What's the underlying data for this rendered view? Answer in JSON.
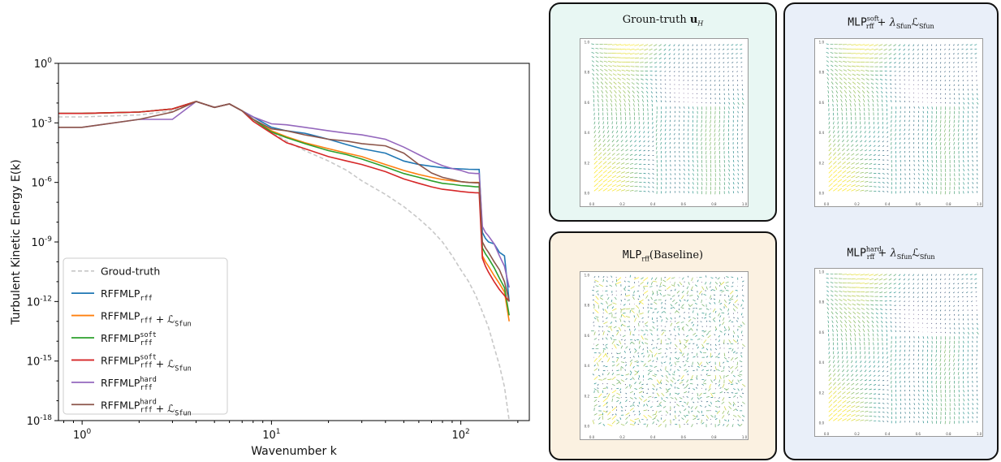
{
  "chart_data": {
    "type": "line",
    "xscale": "log",
    "yscale": "log",
    "xlabel": "Wavenumber k",
    "ylabel": "Turbulent Kinetic Energy E(k)",
    "xlim": [
      0.75,
      230
    ],
    "ylim": [
      1e-18,
      1
    ],
    "x_ticks": [
      "10^0",
      "10^1",
      "10^2"
    ],
    "y_ticks": [
      "10^0",
      "10^-3",
      "10^-6",
      "10^-9",
      "10^-12",
      "10^-15",
      "10^-18"
    ],
    "legend_location": "lower-left",
    "series": [
      {
        "name": "Groud-truth",
        "color": "#c8c8c8",
        "style": "dashed",
        "x": [
          0.75,
          1,
          2,
          3,
          4,
          5,
          6,
          7,
          8,
          10,
          12,
          15,
          20,
          25,
          30,
          40,
          50,
          60,
          70,
          80,
          90,
          100,
          110,
          120,
          130,
          140,
          150,
          160,
          170,
          180
        ],
        "y": [
          0.002,
          0.002,
          0.0025,
          0.004,
          0.012,
          0.006,
          0.009,
          0.004,
          0.0015,
          0.00035,
          0.00012,
          4e-05,
          1.2e-05,
          4e-06,
          1.2e-06,
          2.5e-07,
          6e-08,
          1.5e-08,
          4e-09,
          1e-09,
          2e-10,
          4e-11,
          1e-11,
          2e-12,
          3e-13,
          5e-14,
          5e-15,
          6e-16,
          5e-17,
          1e-18
        ]
      },
      {
        "name": "RFFMLP_rff",
        "color": "#1f77b4",
        "style": "solid",
        "x": [
          0.75,
          1,
          2,
          3,
          4,
          5,
          6,
          7,
          8,
          10,
          12,
          15,
          20,
          25,
          30,
          40,
          50,
          60,
          70,
          80,
          90,
          100,
          110,
          120,
          125,
          130,
          135,
          140,
          150,
          160,
          170,
          180
        ],
        "y": [
          0.003,
          0.003,
          0.0035,
          0.005,
          0.012,
          0.006,
          0.009,
          0.004,
          0.002,
          0.0006,
          0.0004,
          0.0003,
          0.00015,
          8e-05,
          5e-05,
          3e-05,
          1.2e-05,
          8e-06,
          6.5e-06,
          5.5e-06,
          5e-06,
          4.8e-06,
          4.6e-06,
          4.5e-06,
          4.5e-06,
          3e-09,
          1.5e-09,
          1e-09,
          8e-10,
          3e-10,
          2e-10,
          1e-12
        ]
      },
      {
        "name": "RFFMLP_rff + L_Sfun",
        "color": "#ff7f0e",
        "style": "solid",
        "x": [
          0.75,
          1,
          2,
          3,
          4,
          5,
          6,
          7,
          8,
          10,
          12,
          15,
          20,
          25,
          30,
          40,
          50,
          60,
          70,
          80,
          90,
          100,
          110,
          120,
          125,
          130,
          135,
          140,
          150,
          160,
          170,
          180
        ],
        "y": [
          0.003,
          0.003,
          0.0035,
          0.005,
          0.012,
          0.006,
          0.009,
          0.004,
          0.0015,
          0.0004,
          0.0002,
          0.0001,
          5e-05,
          3e-05,
          2e-05,
          8e-06,
          4e-06,
          2.5e-06,
          1.8e-06,
          1.4e-06,
          1.2e-06,
          1.1e-06,
          1e-06,
          1e-06,
          1e-06,
          2e-10,
          1e-10,
          6e-11,
          2e-11,
          8e-12,
          3e-12,
          1e-13
        ]
      },
      {
        "name": "RFFMLP_rff^soft",
        "color": "#2ca02c",
        "style": "solid",
        "x": [
          0.75,
          1,
          2,
          3,
          4,
          5,
          6,
          7,
          8,
          10,
          12,
          15,
          20,
          25,
          30,
          40,
          50,
          60,
          70,
          80,
          90,
          100,
          110,
          120,
          125,
          130,
          135,
          140,
          150,
          160,
          170,
          180
        ],
        "y": [
          0.003,
          0.003,
          0.0035,
          0.005,
          0.012,
          0.006,
          0.009,
          0.004,
          0.0015,
          0.00035,
          0.00018,
          9e-05,
          4e-05,
          2.5e-05,
          1.5e-05,
          6e-06,
          2.8e-06,
          1.8e-06,
          1.2e-06,
          9e-07,
          8e-07,
          7e-07,
          6.5e-07,
          6e-07,
          6e-07,
          5e-10,
          2.5e-10,
          1.5e-10,
          5e-11,
          1.5e-11,
          5e-12,
          2e-13
        ]
      },
      {
        "name": "RFFMLP_rff^soft + L_Sfun",
        "color": "#d62728",
        "style": "solid",
        "x": [
          0.75,
          1,
          2,
          3,
          4,
          5,
          6,
          7,
          8,
          10,
          12,
          15,
          20,
          25,
          30,
          40,
          50,
          60,
          70,
          80,
          90,
          100,
          110,
          120,
          125,
          130,
          135,
          140,
          150,
          160,
          170,
          180
        ],
        "y": [
          0.003,
          0.003,
          0.0035,
          0.005,
          0.012,
          0.006,
          0.009,
          0.004,
          0.0012,
          0.0003,
          0.0001,
          5e-05,
          2e-05,
          1.2e-05,
          8e-06,
          3.5e-06,
          1.5e-06,
          9e-07,
          6e-07,
          4.5e-07,
          4e-07,
          3.5e-07,
          3.2e-07,
          3e-07,
          3e-07,
          1.5e-10,
          6e-11,
          3e-11,
          1e-11,
          4e-12,
          2e-12,
          1e-12
        ]
      },
      {
        "name": "RFFMLP_rff^hard",
        "color": "#9467bd",
        "style": "solid",
        "x": [
          0.75,
          1,
          2,
          3,
          4,
          5,
          6,
          7,
          8,
          10,
          12,
          15,
          20,
          25,
          30,
          40,
          50,
          60,
          70,
          80,
          90,
          100,
          110,
          120,
          125,
          130,
          135,
          140,
          150,
          160,
          170,
          180
        ],
        "y": [
          0.0006,
          0.0006,
          0.0015,
          0.0015,
          0.012,
          0.006,
          0.009,
          0.004,
          0.002,
          0.0009,
          0.0008,
          0.0006,
          0.0004,
          0.0003,
          0.00025,
          0.00015,
          6e-05,
          2.5e-05,
          1.2e-05,
          7e-06,
          5e-06,
          4e-06,
          3e-06,
          2.8e-06,
          2.8e-06,
          6e-09,
          3e-09,
          2e-09,
          8e-10,
          2e-10,
          6e-11,
          5e-12
        ]
      },
      {
        "name": "RFFMLP_rff^hard + L_Sfun",
        "color": "#8c564b",
        "style": "solid",
        "x": [
          0.75,
          1,
          2,
          3,
          4,
          5,
          6,
          7,
          8,
          10,
          12,
          15,
          20,
          25,
          30,
          40,
          50,
          60,
          70,
          80,
          90,
          100,
          110,
          120,
          125,
          130,
          135,
          140,
          150,
          160,
          170,
          180
        ],
        "y": [
          0.0006,
          0.0006,
          0.0015,
          0.0035,
          0.012,
          0.006,
          0.009,
          0.004,
          0.0015,
          0.0005,
          0.0004,
          0.00025,
          0.00015,
          0.00012,
          9e-05,
          7e-05,
          3e-05,
          8e-06,
          3e-06,
          1.8e-06,
          1.4e-06,
          1.1e-06,
          1e-06,
          9.5e-07,
          9.5e-07,
          1e-09,
          5e-10,
          3e-10,
          1e-10,
          4e-11,
          1e-11,
          1e-12
        ]
      }
    ]
  },
  "panels": [
    {
      "id": "ground-truth",
      "title_main": "Groun-truth ",
      "title_math": "u",
      "title_sub": "H",
      "bg": "#e8f7f3",
      "noise": 0.0
    },
    {
      "id": "baseline",
      "title_main": "MLP",
      "title_sub": "rff",
      "title_tail": "(Baseline)",
      "bg": "#fbf1e1",
      "noise": 1.0
    },
    {
      "id": "soft",
      "title_main": "MLP",
      "title_sup": "soft",
      "title_sub": "rff",
      "title_tail": " + λ",
      "title_tail_sub": "Sfun",
      "title_tail2": "ℒ",
      "title_tail2_sub": "Sfun",
      "bg": "#e9eff9",
      "noise": 0.05
    },
    {
      "id": "hard",
      "title_main": "MLP",
      "title_sup": "hard",
      "title_sub": "rff",
      "title_tail": " + λ",
      "title_tail_sub": "Sfun",
      "title_tail2": "ℒ",
      "title_tail2_sub": "Sfun",
      "bg": "#e9eff9",
      "noise": 0.08
    }
  ],
  "field_axes": {
    "x_ticks": [
      "0.0",
      "0.2",
      "0.4",
      "0.6",
      "0.8",
      "1.0"
    ],
    "y_ticks": [
      "1.0",
      "0.8",
      "0.6",
      "0.4",
      "0.2",
      "0.0"
    ],
    "xlabel": "x",
    "ylabel": "y"
  }
}
